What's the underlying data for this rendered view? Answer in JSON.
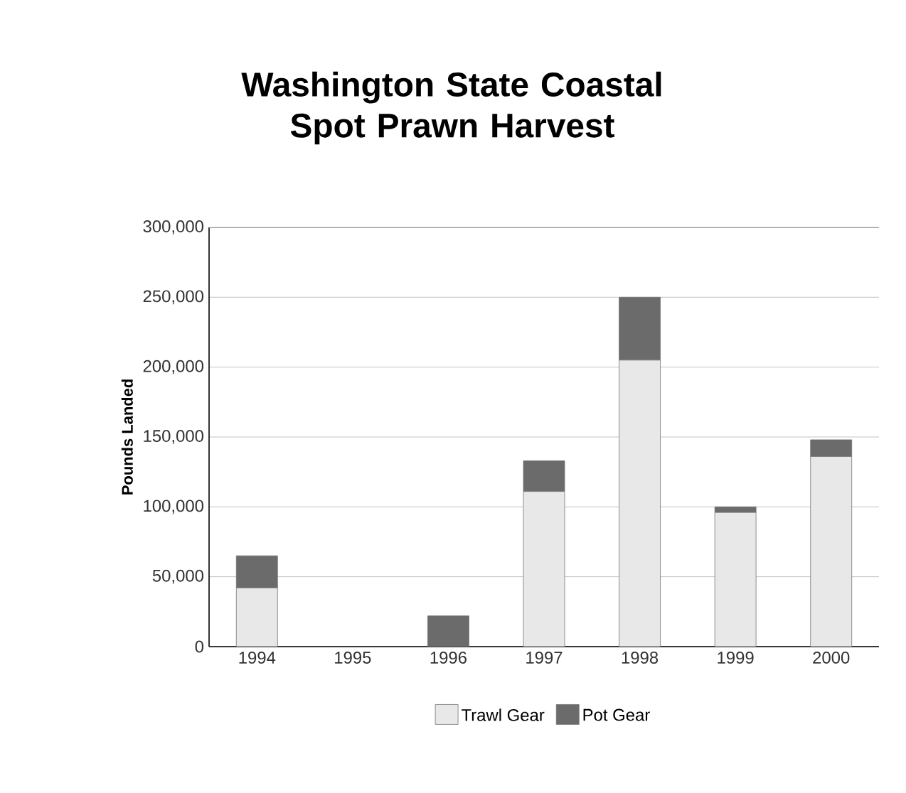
{
  "chart_data": {
    "type": "bar",
    "title": "Washington State Coastal Spot Prawn Harvest",
    "ylabel": "Pounds Landed",
    "categories": [
      "1994",
      "1995",
      "1996",
      "1997",
      "1998",
      "1999",
      "2000"
    ],
    "series": [
      {
        "name": "Trawl Gear",
        "color": "#e8e8e8",
        "values": [
          42000,
          0,
          0,
          111000,
          205000,
          96000,
          136000
        ]
      },
      {
        "name": "Pot Gear",
        "color": "#6b6b6b",
        "values": [
          23000,
          0,
          22000,
          22000,
          45000,
          4000,
          12000
        ]
      }
    ],
    "stacked": true,
    "ylim": [
      0,
      300000
    ],
    "yticks": [
      {
        "value": 0,
        "label": "0"
      },
      {
        "value": 50000,
        "label": "50,000"
      },
      {
        "value": 100000,
        "label": "100,000"
      },
      {
        "value": 150000,
        "label": "150,000"
      },
      {
        "value": 200000,
        "label": "200,000"
      },
      {
        "value": 250000,
        "label": "250,000"
      },
      {
        "value": 300000,
        "label": "300,000"
      }
    ],
    "grid": "y",
    "legend": "bottom"
  }
}
